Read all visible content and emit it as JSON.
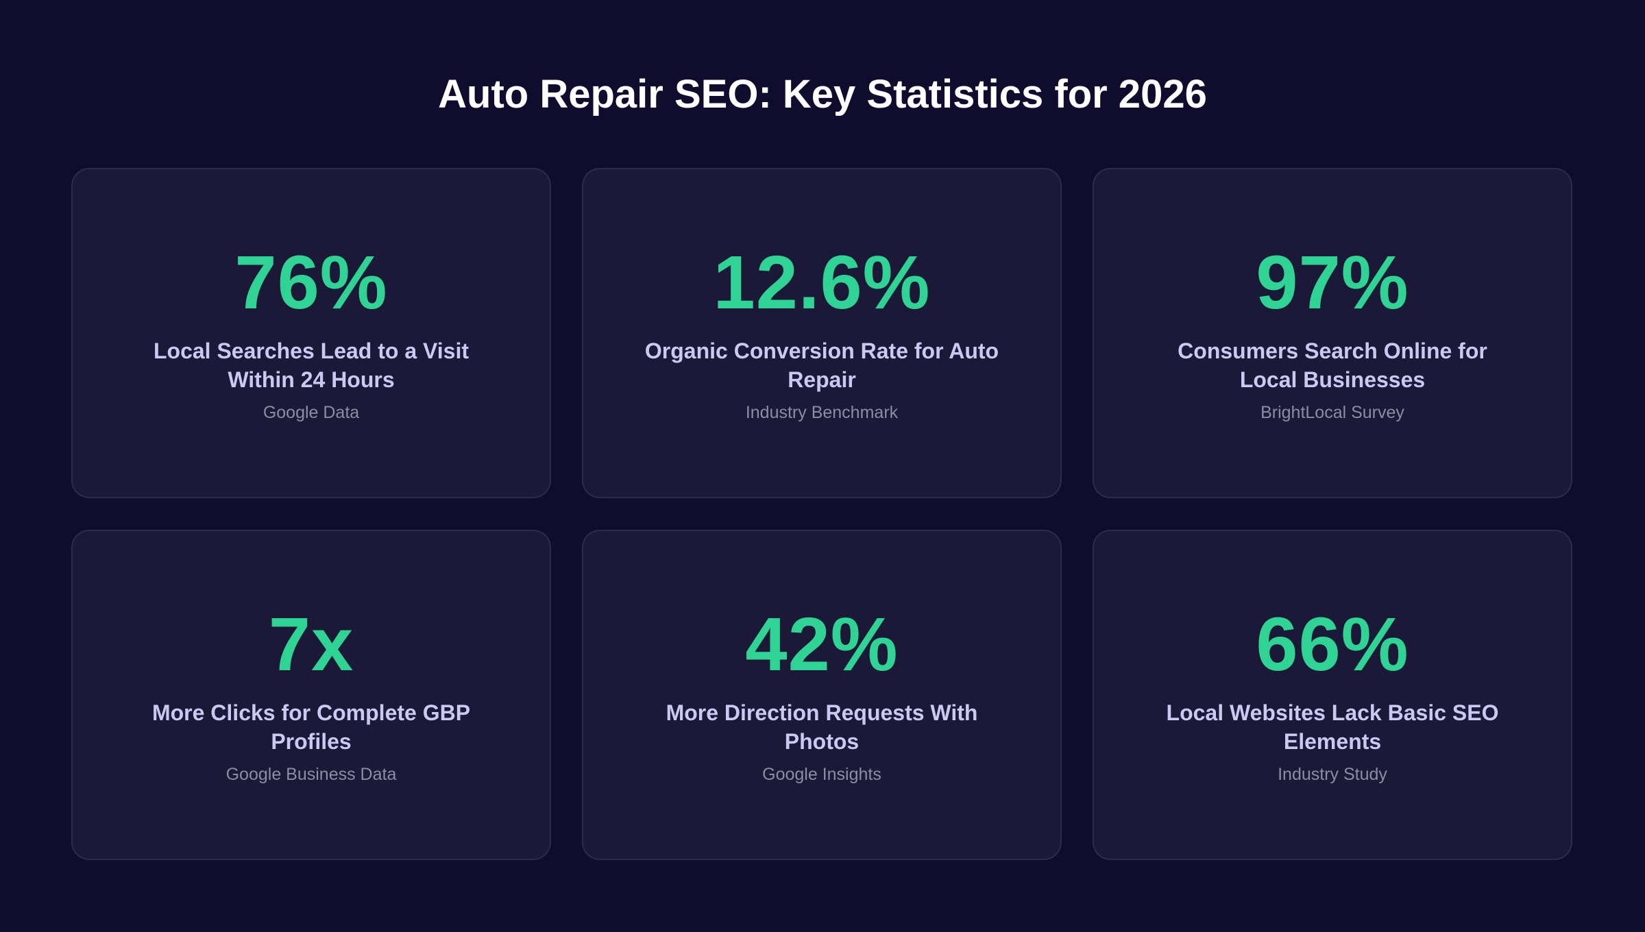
{
  "header": {
    "title": "Auto Repair SEO: Key Statistics for 2026"
  },
  "stats": [
    {
      "value": "76%",
      "label": "Local Searches Lead to a Visit Within 24 Hours",
      "source": "Google Data"
    },
    {
      "value": "12.6%",
      "label": "Organic Conversion Rate for Auto Repair",
      "source": "Industry Benchmark"
    },
    {
      "value": "97%",
      "label": "Consumers Search Online for Local Businesses",
      "source": "BrightLocal Survey"
    },
    {
      "value": "7x",
      "label": "More Clicks for Complete GBP Profiles",
      "source": "Google Business Data"
    },
    {
      "value": "42%",
      "label": "More Direction Requests With Photos",
      "source": "Google Insights"
    },
    {
      "value": "66%",
      "label": "Local Websites Lack Basic SEO Elements",
      "source": "Industry Study"
    }
  ]
}
